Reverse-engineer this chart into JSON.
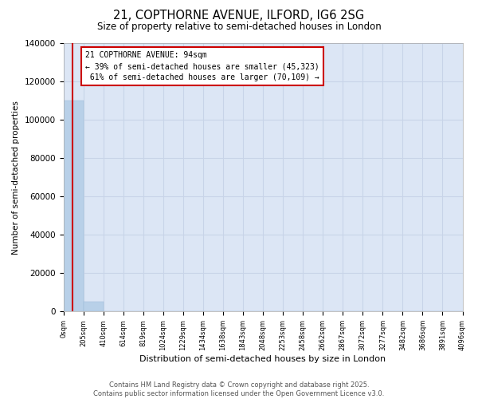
{
  "title": "21, COPTHORNE AVENUE, ILFORD, IG6 2SG",
  "subtitle": "Size of property relative to semi-detached houses in London",
  "xlabel": "Distribution of semi-detached houses by size in London",
  "ylabel": "Number of semi-detached properties",
  "property_size": 94,
  "property_label": "21 COPTHORNE AVENUE: 94sqm",
  "pct_smaller": 39,
  "count_smaller": 45323,
  "pct_larger": 61,
  "count_larger": 70109,
  "bin_edges": [
    0,
    205,
    410,
    614,
    819,
    1024,
    1229,
    1434,
    1638,
    1843,
    2048,
    2253,
    2458,
    2662,
    2867,
    3072,
    3277,
    3482,
    3686,
    3891,
    4096
  ],
  "bin_labels": [
    "0sqm",
    "205sqm",
    "410sqm",
    "614sqm",
    "819sqm",
    "1024sqm",
    "1229sqm",
    "1434sqm",
    "1638sqm",
    "1843sqm",
    "2048sqm",
    "2253sqm",
    "2458sqm",
    "2662sqm",
    "2867sqm",
    "3072sqm",
    "3277sqm",
    "3482sqm",
    "3686sqm",
    "3891sqm",
    "4096sqm"
  ],
  "bar_heights": [
    110000,
    5200,
    200,
    50,
    20,
    10,
    5,
    3,
    2,
    1,
    1,
    0,
    0,
    0,
    0,
    0,
    0,
    0,
    0,
    0
  ],
  "bar_color": "#b8d0e8",
  "bar_edgecolor": "#9ab8d8",
  "property_line_color": "#cc0000",
  "annotation_box_edgecolor": "#cc0000",
  "background_color": "#dce6f5",
  "grid_color": "#c8d4e8",
  "ylim": [
    0,
    140000
  ],
  "yticks": [
    0,
    20000,
    40000,
    60000,
    80000,
    100000,
    120000,
    140000
  ],
  "footer_line1": "Contains HM Land Registry data © Crown copyright and database right 2025.",
  "footer_line2": "Contains public sector information licensed under the Open Government Licence v3.0."
}
